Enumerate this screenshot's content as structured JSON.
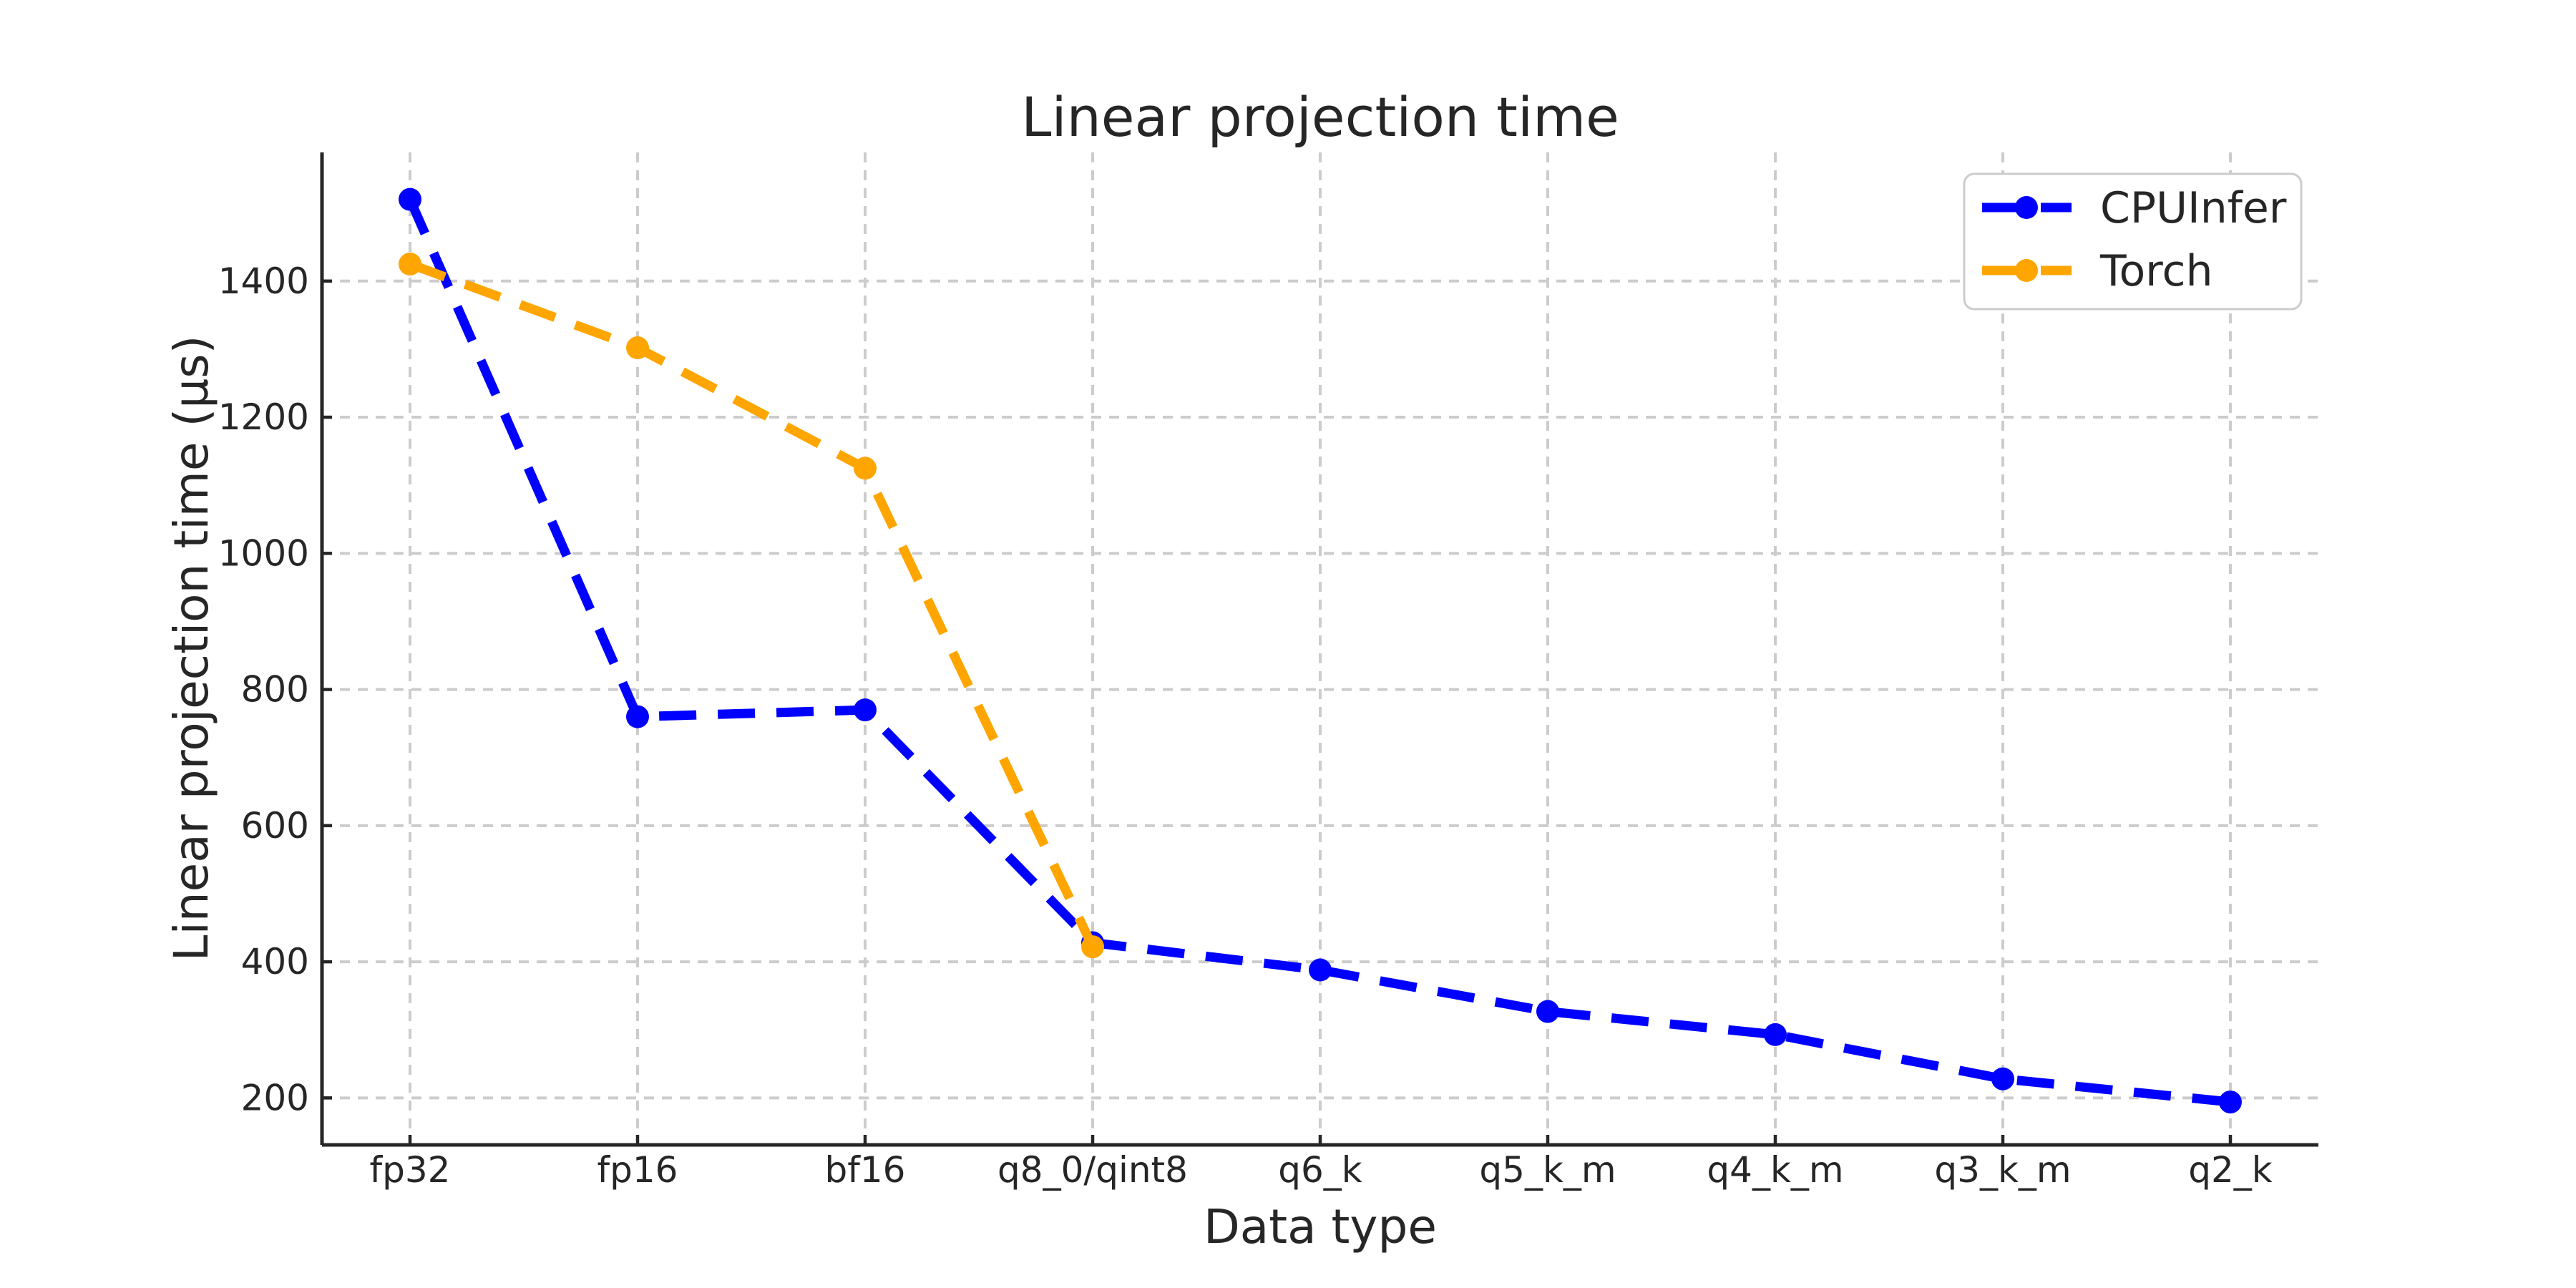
{
  "chart_data": {
    "type": "line",
    "title": "Linear projection time",
    "xlabel": "Data type",
    "ylabel": "Linear projection time (µs)",
    "categories": [
      "fp32",
      "fp16",
      "bf16",
      "q8_0/qint8",
      "q6_k",
      "q5_k_m",
      "q4_k_m",
      "q3_k_m",
      "q2_k"
    ],
    "series": [
      {
        "name": "CPUInfer",
        "color": "#0000ff",
        "values": [
          1520,
          760,
          770,
          428,
          388,
          327,
          293,
          228,
          194
        ]
      },
      {
        "name": "Torch",
        "color": "#ffa500",
        "values": [
          1425,
          1302,
          1125,
          422
        ]
      }
    ],
    "yticks": [
      200,
      400,
      600,
      800,
      1000,
      1200,
      1400
    ],
    "ylim": [
      131,
      1589
    ],
    "grid": true,
    "grid_style": "dashed",
    "line_style": "dashed",
    "marker": "circle",
    "legend_position": "upper right",
    "colors": {
      "text": "#262626",
      "spine": "#262626",
      "grid": "#cccccc",
      "background": "#ffffff",
      "legend_border": "#cccccc"
    }
  }
}
